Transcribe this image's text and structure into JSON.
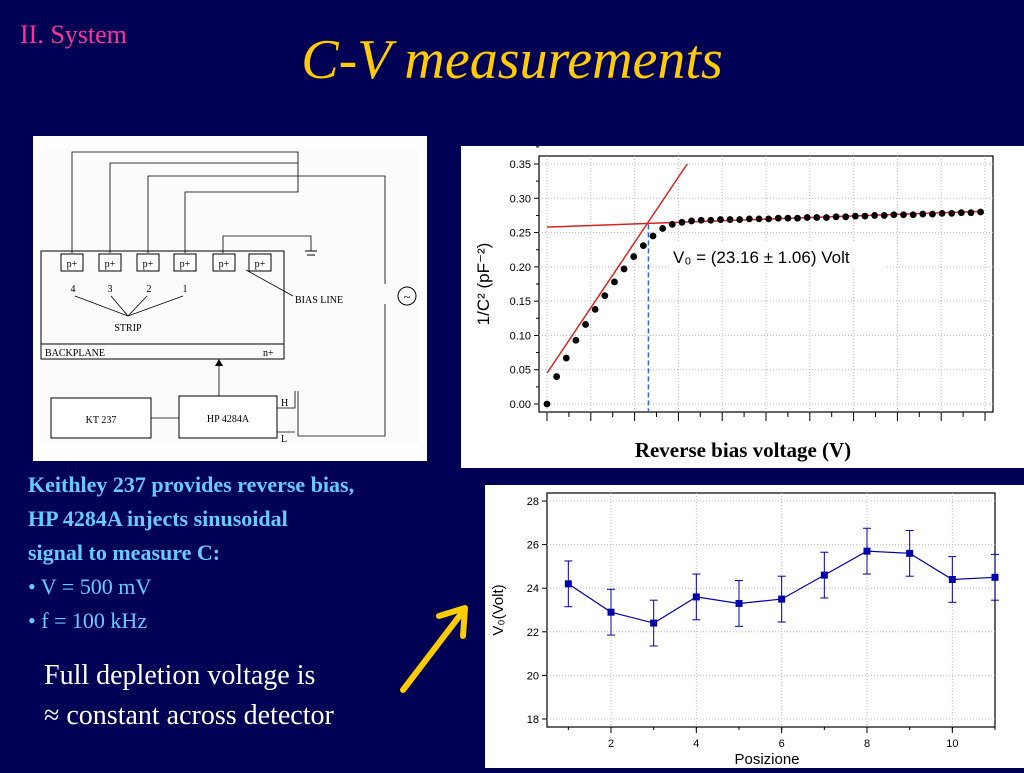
{
  "slide": {
    "section": "II. System",
    "title": "C-V measurements"
  },
  "diagram": {
    "pads": [
      "p+",
      "p+",
      "p+",
      "p+",
      "p+",
      "p+"
    ],
    "strip_numbers": [
      "4",
      "3",
      "2",
      "1"
    ],
    "strip_label": "STRIP",
    "bias_line_label": "BIAS LINE",
    "backplane_label": "BACKPLANE",
    "n_label": "n+",
    "kt_label": "KT 237",
    "hp_label": "HP 4284A",
    "h_label": "H",
    "l_label": "L",
    "ac_symbol": "~"
  },
  "description": {
    "lines": [
      "Keithley 237 provides reverse bias,",
      "HP 4284A injects sinusoidal",
      "signal to measure C:"
    ],
    "bullets": [
      "• V = 500 mV",
      "• f = 100 kHz"
    ]
  },
  "conclusion": {
    "lines": [
      "Full depletion voltage is",
      "≈ constant across detector"
    ]
  },
  "chart_data": [
    {
      "type": "scatter",
      "title": "",
      "xlabel": "Reverse bias voltage (V)",
      "ylabel": "1/C² (pF⁻²)",
      "ylim": [
        0,
        0.35
      ],
      "yticks": [
        "0.00",
        "0.05",
        "0.10",
        "0.15",
        "0.20",
        "0.25",
        "0.30",
        "0.35"
      ],
      "annotation": "V₀ = (23.16 ± 1.06) Volt",
      "v0": 23.16,
      "xlim": [
        0,
        100
      ],
      "x": [
        0,
        2.2,
        4.4,
        6.6,
        8.8,
        11,
        13.2,
        15.4,
        17.6,
        19.8,
        22,
        24.2,
        26.4,
        28.6,
        30.8,
        33,
        35.2,
        37.4,
        39.6,
        41.8,
        44,
        46.2,
        48.4,
        50.6,
        52.8,
        55,
        57.2,
        59.4,
        61.6,
        63.8,
        66,
        68.2,
        70.4,
        72.6,
        74.8,
        77,
        79.2,
        81.4,
        83.6,
        85.8,
        88,
        90.2,
        92.4,
        94.6,
        96.8,
        99
      ],
      "y": [
        0.0,
        0.04,
        0.067,
        0.093,
        0.116,
        0.138,
        0.158,
        0.178,
        0.197,
        0.215,
        0.231,
        0.245,
        0.256,
        0.262,
        0.265,
        0.267,
        0.268,
        0.268,
        0.269,
        0.269,
        0.269,
        0.27,
        0.27,
        0.27,
        0.271,
        0.271,
        0.271,
        0.272,
        0.272,
        0.272,
        0.273,
        0.273,
        0.274,
        0.274,
        0.275,
        0.275,
        0.276,
        0.276,
        0.276,
        0.277,
        0.277,
        0.278,
        0.278,
        0.279,
        0.279,
        0.28
      ],
      "colors": {
        "points": "#000000",
        "fit": "#dd2222",
        "v0_line": "#3366cc"
      }
    },
    {
      "type": "line",
      "title": "",
      "xlabel": "Posizione",
      "ylabel": "V₀(Volt)",
      "xlim": [
        0.5,
        11
      ],
      "ylim": [
        18,
        28
      ],
      "xticks": [
        "2",
        "4",
        "6",
        "8",
        "10"
      ],
      "yticks": [
        "18",
        "20",
        "22",
        "24",
        "26",
        "28"
      ],
      "x": [
        1,
        2,
        3,
        4,
        5,
        6,
        7,
        8,
        9,
        10,
        11
      ],
      "y": [
        24.2,
        22.9,
        22.4,
        23.6,
        23.3,
        23.5,
        24.6,
        25.7,
        25.6,
        24.4,
        24.5
      ],
      "errors": [
        1.05,
        1.05,
        1.05,
        1.05,
        1.05,
        1.05,
        1.05,
        1.05,
        1.05,
        1.05,
        1.05
      ],
      "colors": {
        "line": "#0000aa"
      }
    }
  ]
}
